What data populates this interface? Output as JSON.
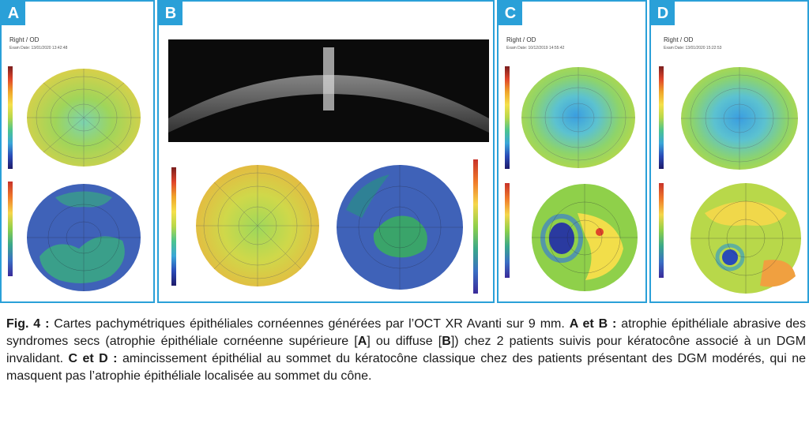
{
  "panels": [
    {
      "label": "A",
      "title": "Right / OD",
      "exam": "Exam Date: 13/01/2020 13:42:48"
    },
    {
      "label": "B"
    },
    {
      "label": "C",
      "title": "Right / OD",
      "exam": "Exam Date: 10/12/2019 14:55:42"
    },
    {
      "label": "D",
      "title": "Right / OD",
      "exam": "Exam Date: 13/01/2020 15:22:53"
    }
  ],
  "caption": {
    "fig": "Fig. 4 :",
    "text1": " Cartes pachymétriques épithéliales cornéennes générées par l’OCT XR Avanti sur 9 mm. ",
    "ab": "A et B :",
    "text2": " atrophie épithéliale abrasive des syndromes secs (atrophie épithéliale cornéenne supérieure [",
    "a": "A",
    "text3": "] ou diffuse [",
    "b": "B",
    "text4": "]) chez 2 patients suivis pour kératocône associé à un DGM invalidant. ",
    "cd": "C et D :",
    "text5": " amincissement épithélial au sommet du kératocône classique chez des patients présentant des DGM modérés, qui ne masquent pas l’atrophie épithéliale localisée au sommet du cône."
  },
  "colors": {
    "frame": "#2aa0d8"
  }
}
